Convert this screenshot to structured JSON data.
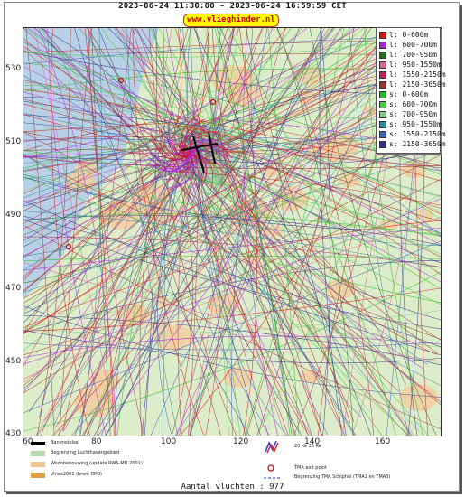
{
  "header": {
    "title": "2023-06-24 11:30:00 - 2023-06-24 16:59:59 CET",
    "brand": "www.vlieghinder.nl"
  },
  "map": {
    "y_ticks": [
      "530",
      "510",
      "490",
      "470",
      "450",
      "430"
    ],
    "x_ticks": [
      "60",
      "80",
      "100",
      "120",
      "140",
      "160"
    ],
    "background_color": "#b9d1e6",
    "land_color": "#ddecc9",
    "urban_color": "#f2cfa0"
  },
  "legend": {
    "items": [
      {
        "label": "l: 0-600m",
        "color": "#e01010"
      },
      {
        "label": "l: 600-700m",
        "color": "#b020e0"
      },
      {
        "label": "l: 700-950m",
        "color": "#207020"
      },
      {
        "label": "l: 950-1550m",
        "color": "#e0609a"
      },
      {
        "label": "l: 1550-2150m",
        "color": "#c02060"
      },
      {
        "label": "l: 2150-3650m",
        "color": "#a0302a"
      },
      {
        "label": "s: 0-600m",
        "color": "#20c020"
      },
      {
        "label": "s: 600-700m",
        "color": "#40d040"
      },
      {
        "label": "s: 700-950m",
        "color": "#7cd080"
      },
      {
        "label": "s: 950-1550m",
        "color": "#2a8aa0"
      },
      {
        "label": "s: 1550-2150m",
        "color": "#4060c0"
      },
      {
        "label": "s: 2150-3650m",
        "color": "#303090"
      }
    ]
  },
  "footer": {
    "items": [
      {
        "label": "Banenstelsel",
        "color": "#000000"
      },
      {
        "label": "Begrenzing Luchthavengebied",
        "color": "#b8d8b0"
      },
      {
        "label": "Woonbebouwing (update RWS-MD 2001)",
        "color": "#f0c890"
      },
      {
        "label": "Vinex2001 (bron: RPD)",
        "color": "#e0a040"
      }
    ],
    "right_items": [
      {
        "label": "20 Ke 35 Ke"
      },
      {
        "label": "TMA exit point"
      },
      {
        "label": "Begrenzing TMA Schiphol  (TMA1 en TMA3)"
      }
    ],
    "count_text": "Aantal vluchten : 977"
  }
}
